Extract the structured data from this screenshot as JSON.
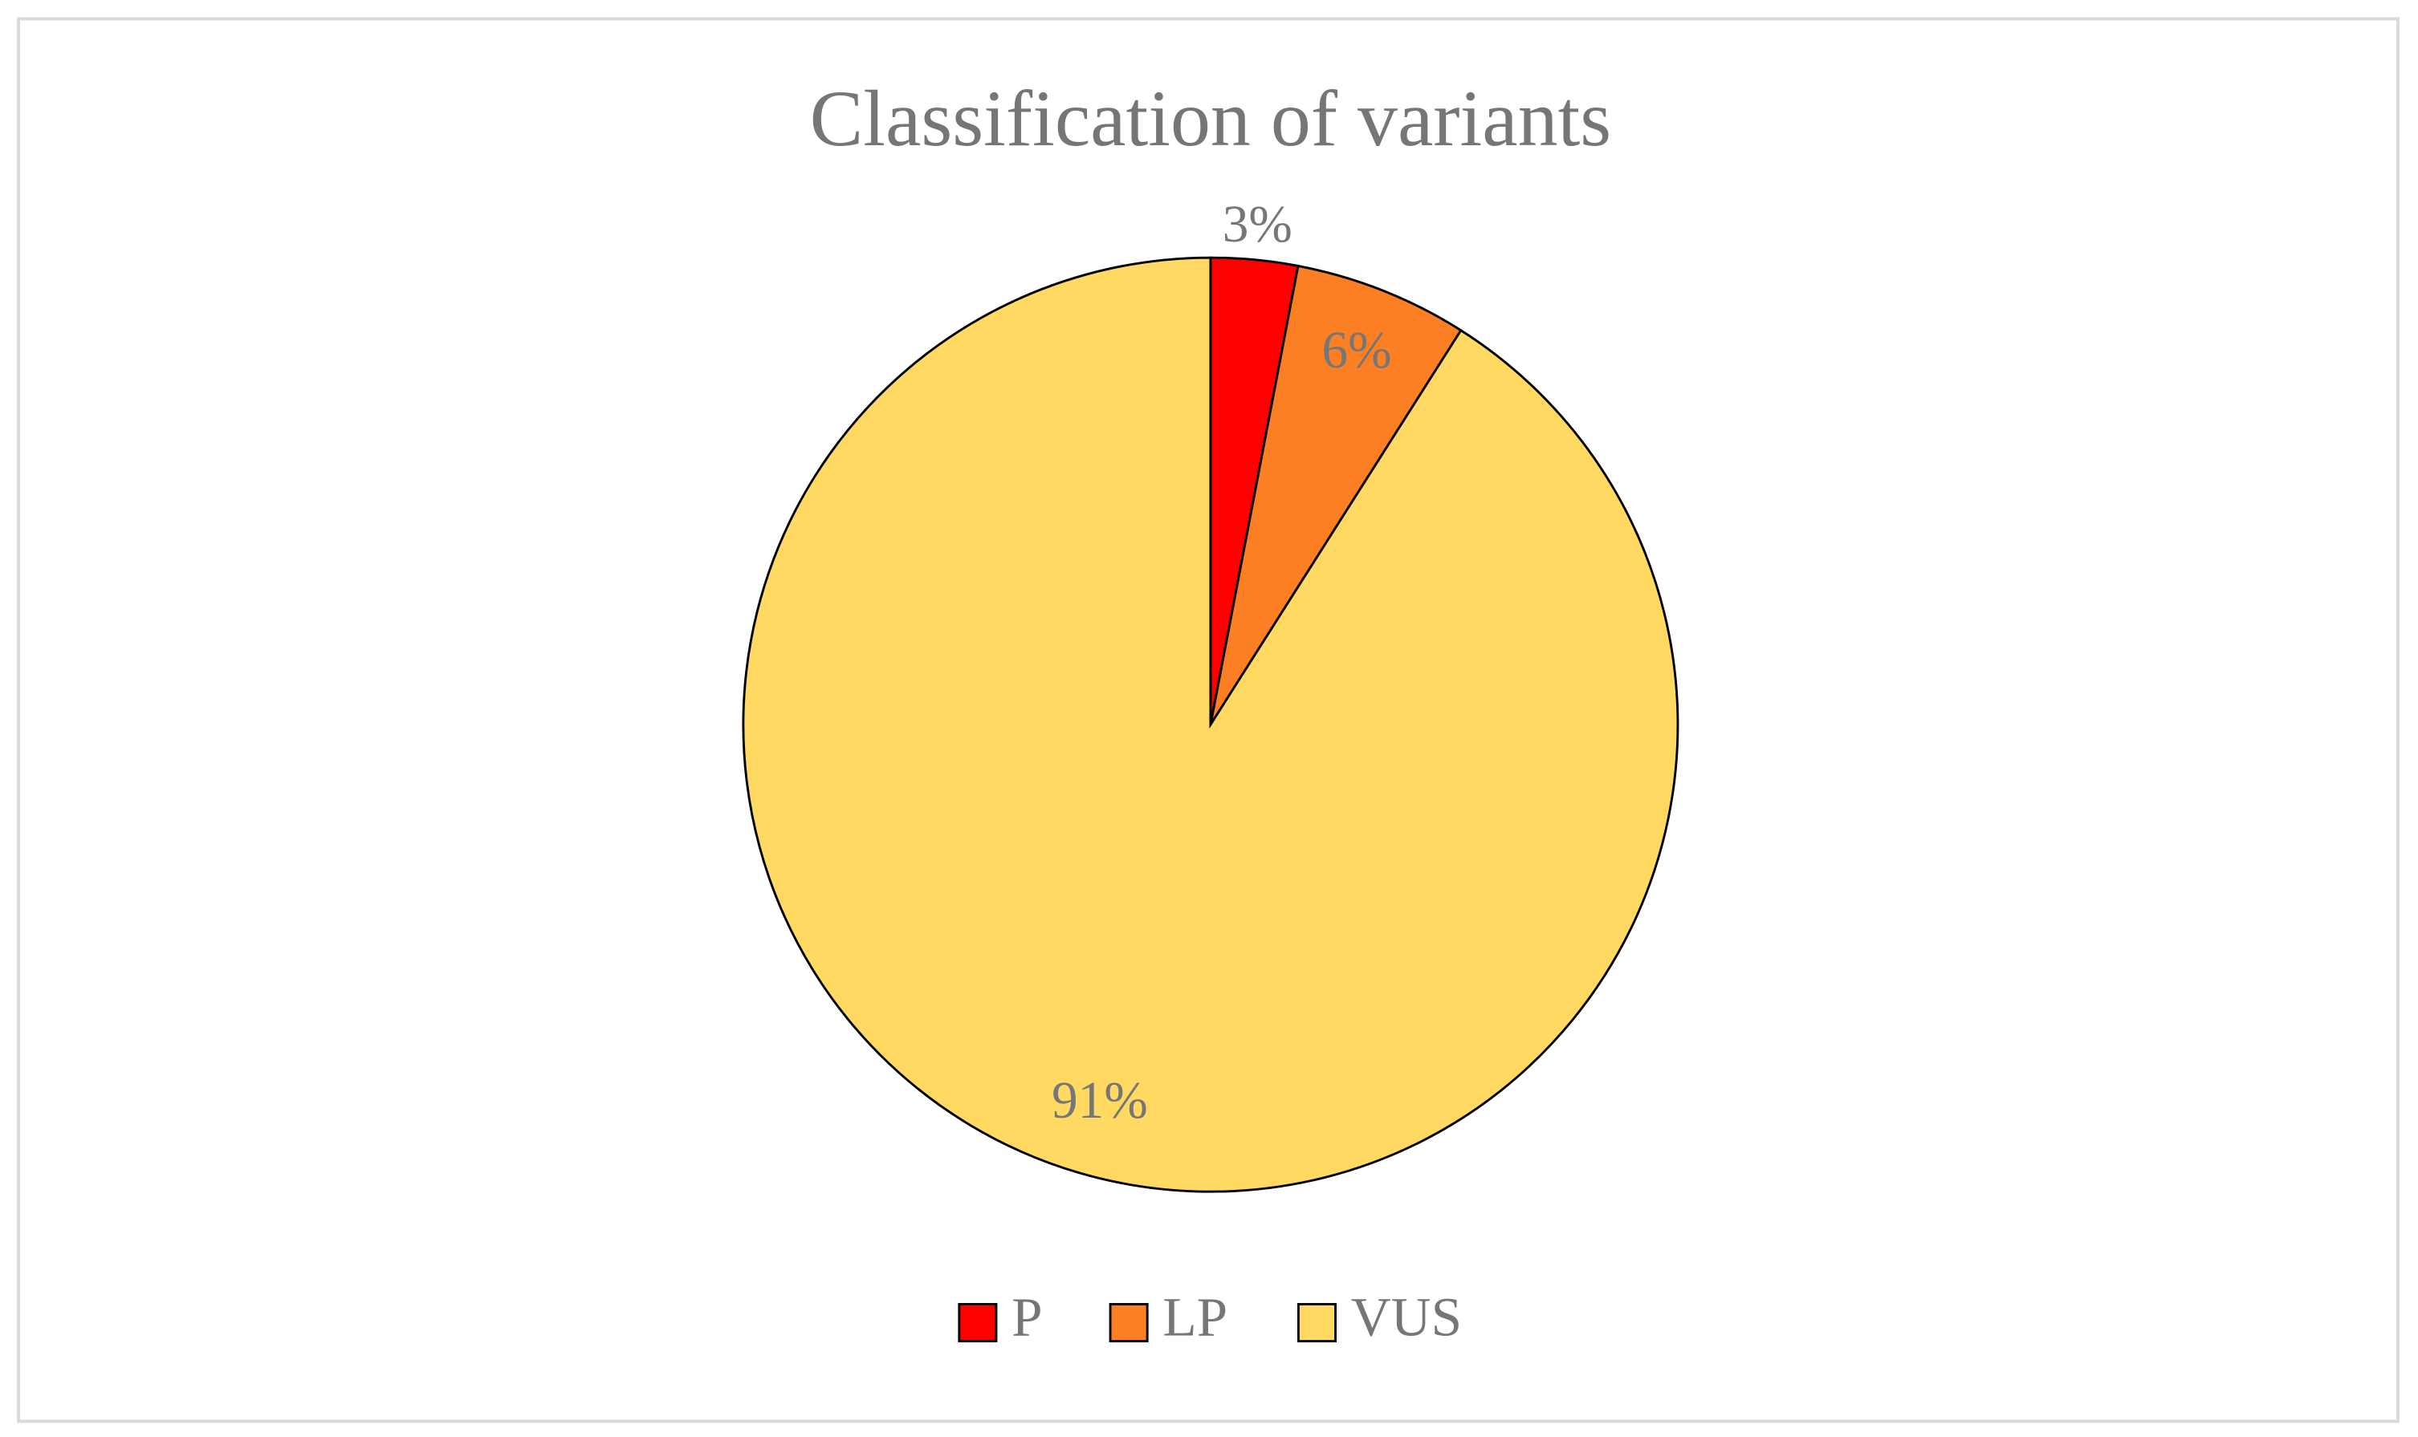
{
  "chart_data": {
    "type": "pie",
    "title": "Classification of variants",
    "categories": [
      "P",
      "LP",
      "VUS"
    ],
    "values": [
      3,
      6,
      91
    ],
    "value_labels": [
      "3%",
      "6%",
      "91%"
    ],
    "colors": [
      "#ff0000",
      "#fd7f23",
      "#ffd961"
    ],
    "legend": "bottom"
  }
}
